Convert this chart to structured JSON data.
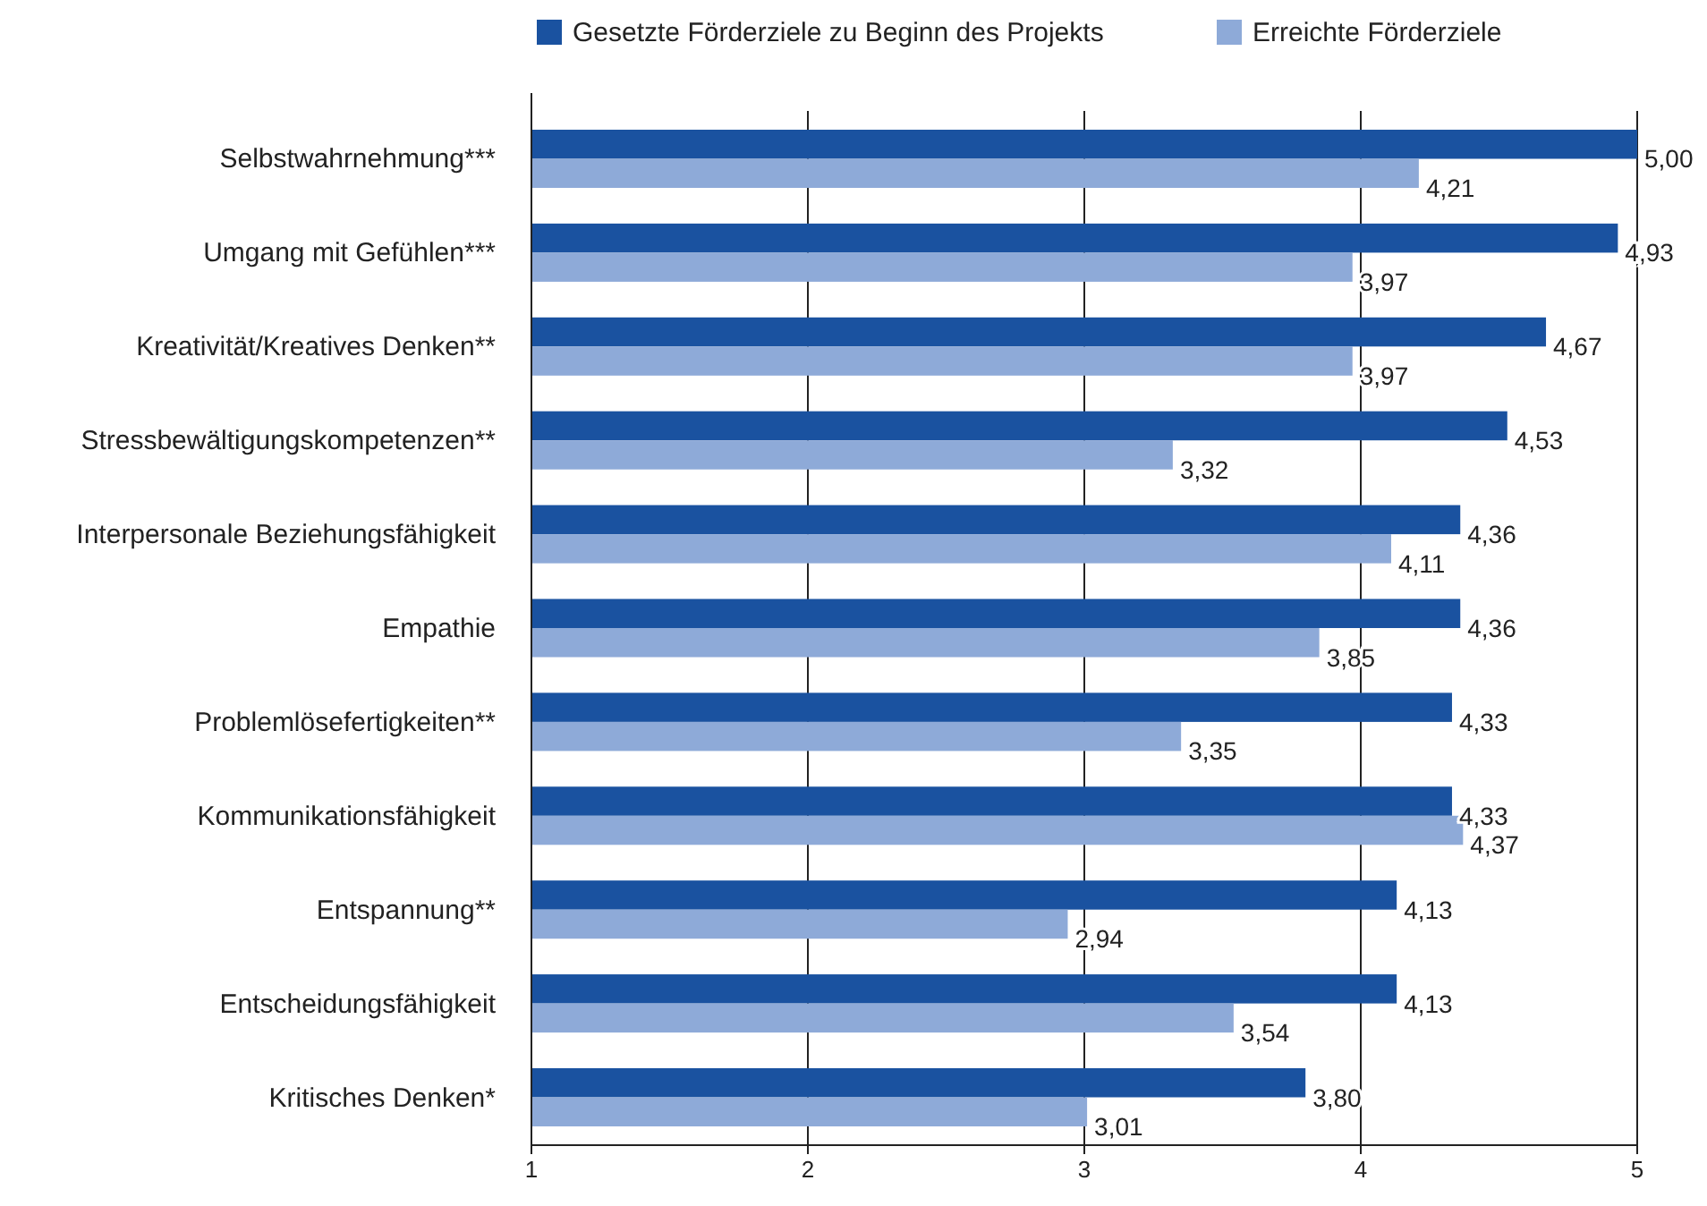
{
  "chart_data": {
    "type": "bar",
    "orientation": "horizontal",
    "categories": [
      "Selbstwahrnehmung***",
      "Umgang mit Gefühlen***",
      "Kreativität/Kreatives Denken**",
      "Stressbewältigungskompetenzen**",
      "Interpersonale Beziehungsfähigkeit",
      "Empathie",
      "Problemlösefertigkeiten**",
      "Kommunikationsfähigkeit",
      "Entspannung**",
      "Entscheidungsfähigkeit",
      "Kritisches Denken*"
    ],
    "series": [
      {
        "name": "Gesetzte Förderziele zu Beginn des Projekts",
        "color": "#1a52a0",
        "values": [
          5.0,
          4.93,
          4.67,
          4.53,
          4.36,
          4.36,
          4.33,
          4.33,
          4.13,
          4.13,
          3.8
        ],
        "value_labels": [
          "5,00",
          "4,93",
          "4,67",
          "4,53",
          "4,36",
          "4,36",
          "4,33",
          "4,33",
          "4,13",
          "4,13",
          "3,80"
        ]
      },
      {
        "name": "Erreichte Förderziele",
        "color": "#8eaad8",
        "values": [
          4.21,
          3.97,
          3.97,
          3.32,
          4.11,
          3.85,
          3.35,
          4.37,
          2.94,
          3.54,
          3.01
        ],
        "value_labels": [
          "4,21",
          "3,97",
          "3,97",
          "3,32",
          "4,11",
          "3,85",
          "3,35",
          "4,37",
          "2,94",
          "3,54",
          "3,01"
        ]
      }
    ],
    "xlim": [
      1,
      5
    ],
    "xticks": [
      1,
      2,
      3,
      4,
      5
    ],
    "grid": "x",
    "legend": "top"
  }
}
